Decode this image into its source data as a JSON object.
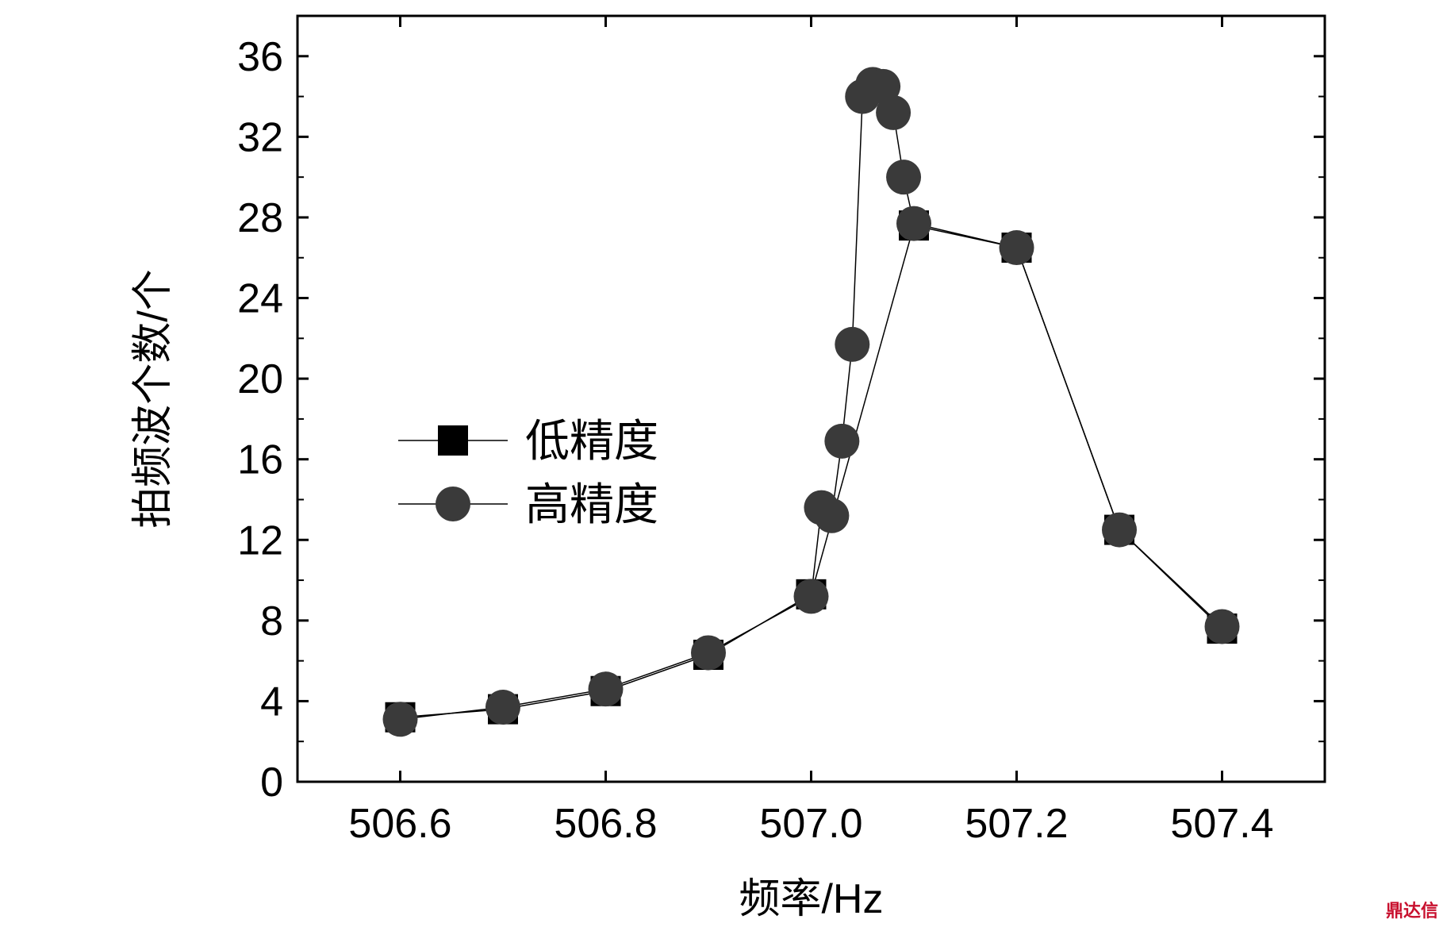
{
  "chart_data": {
    "type": "line",
    "xlabel": "频率/Hz",
    "ylabel": "拍频波个数/个",
    "xlim": [
      506.5,
      507.5
    ],
    "ylim": [
      0,
      38
    ],
    "xticks": [
      506.6,
      506.8,
      507.0,
      507.2,
      507.4
    ],
    "xtick_labels": [
      "506.6",
      "506.8",
      "507.0",
      "507.2",
      "507.4"
    ],
    "yticks": [
      0,
      4,
      8,
      12,
      16,
      20,
      24,
      28,
      32,
      36
    ],
    "ytick_labels": [
      "0",
      "4",
      "8",
      "12",
      "16",
      "20",
      "24",
      "28",
      "32",
      "36"
    ],
    "grid": false,
    "legend_position": "center-left",
    "series": [
      {
        "name": "低精度",
        "marker": "square",
        "color": "#000000",
        "x": [
          506.6,
          506.7,
          506.8,
          506.9,
          507.0,
          507.1,
          507.2,
          507.3,
          507.4
        ],
        "y": [
          3.2,
          3.6,
          4.5,
          6.3,
          9.3,
          27.6,
          26.5,
          12.5,
          7.6
        ]
      },
      {
        "name": "高精度",
        "marker": "circle",
        "color": "#3a3a3a",
        "x": [
          506.6,
          506.7,
          506.8,
          506.9,
          507.0,
          507.01,
          507.02,
          507.03,
          507.04,
          507.05,
          507.06,
          507.07,
          507.08,
          507.09,
          507.1,
          507.2,
          507.3,
          507.4
        ],
        "y": [
          3.1,
          3.7,
          4.6,
          6.4,
          9.2,
          13.6,
          13.2,
          16.9,
          21.7,
          34.0,
          34.6,
          34.5,
          33.2,
          30.0,
          27.7,
          26.5,
          12.5,
          7.7
        ]
      }
    ]
  },
  "watermark": "鼎达信"
}
